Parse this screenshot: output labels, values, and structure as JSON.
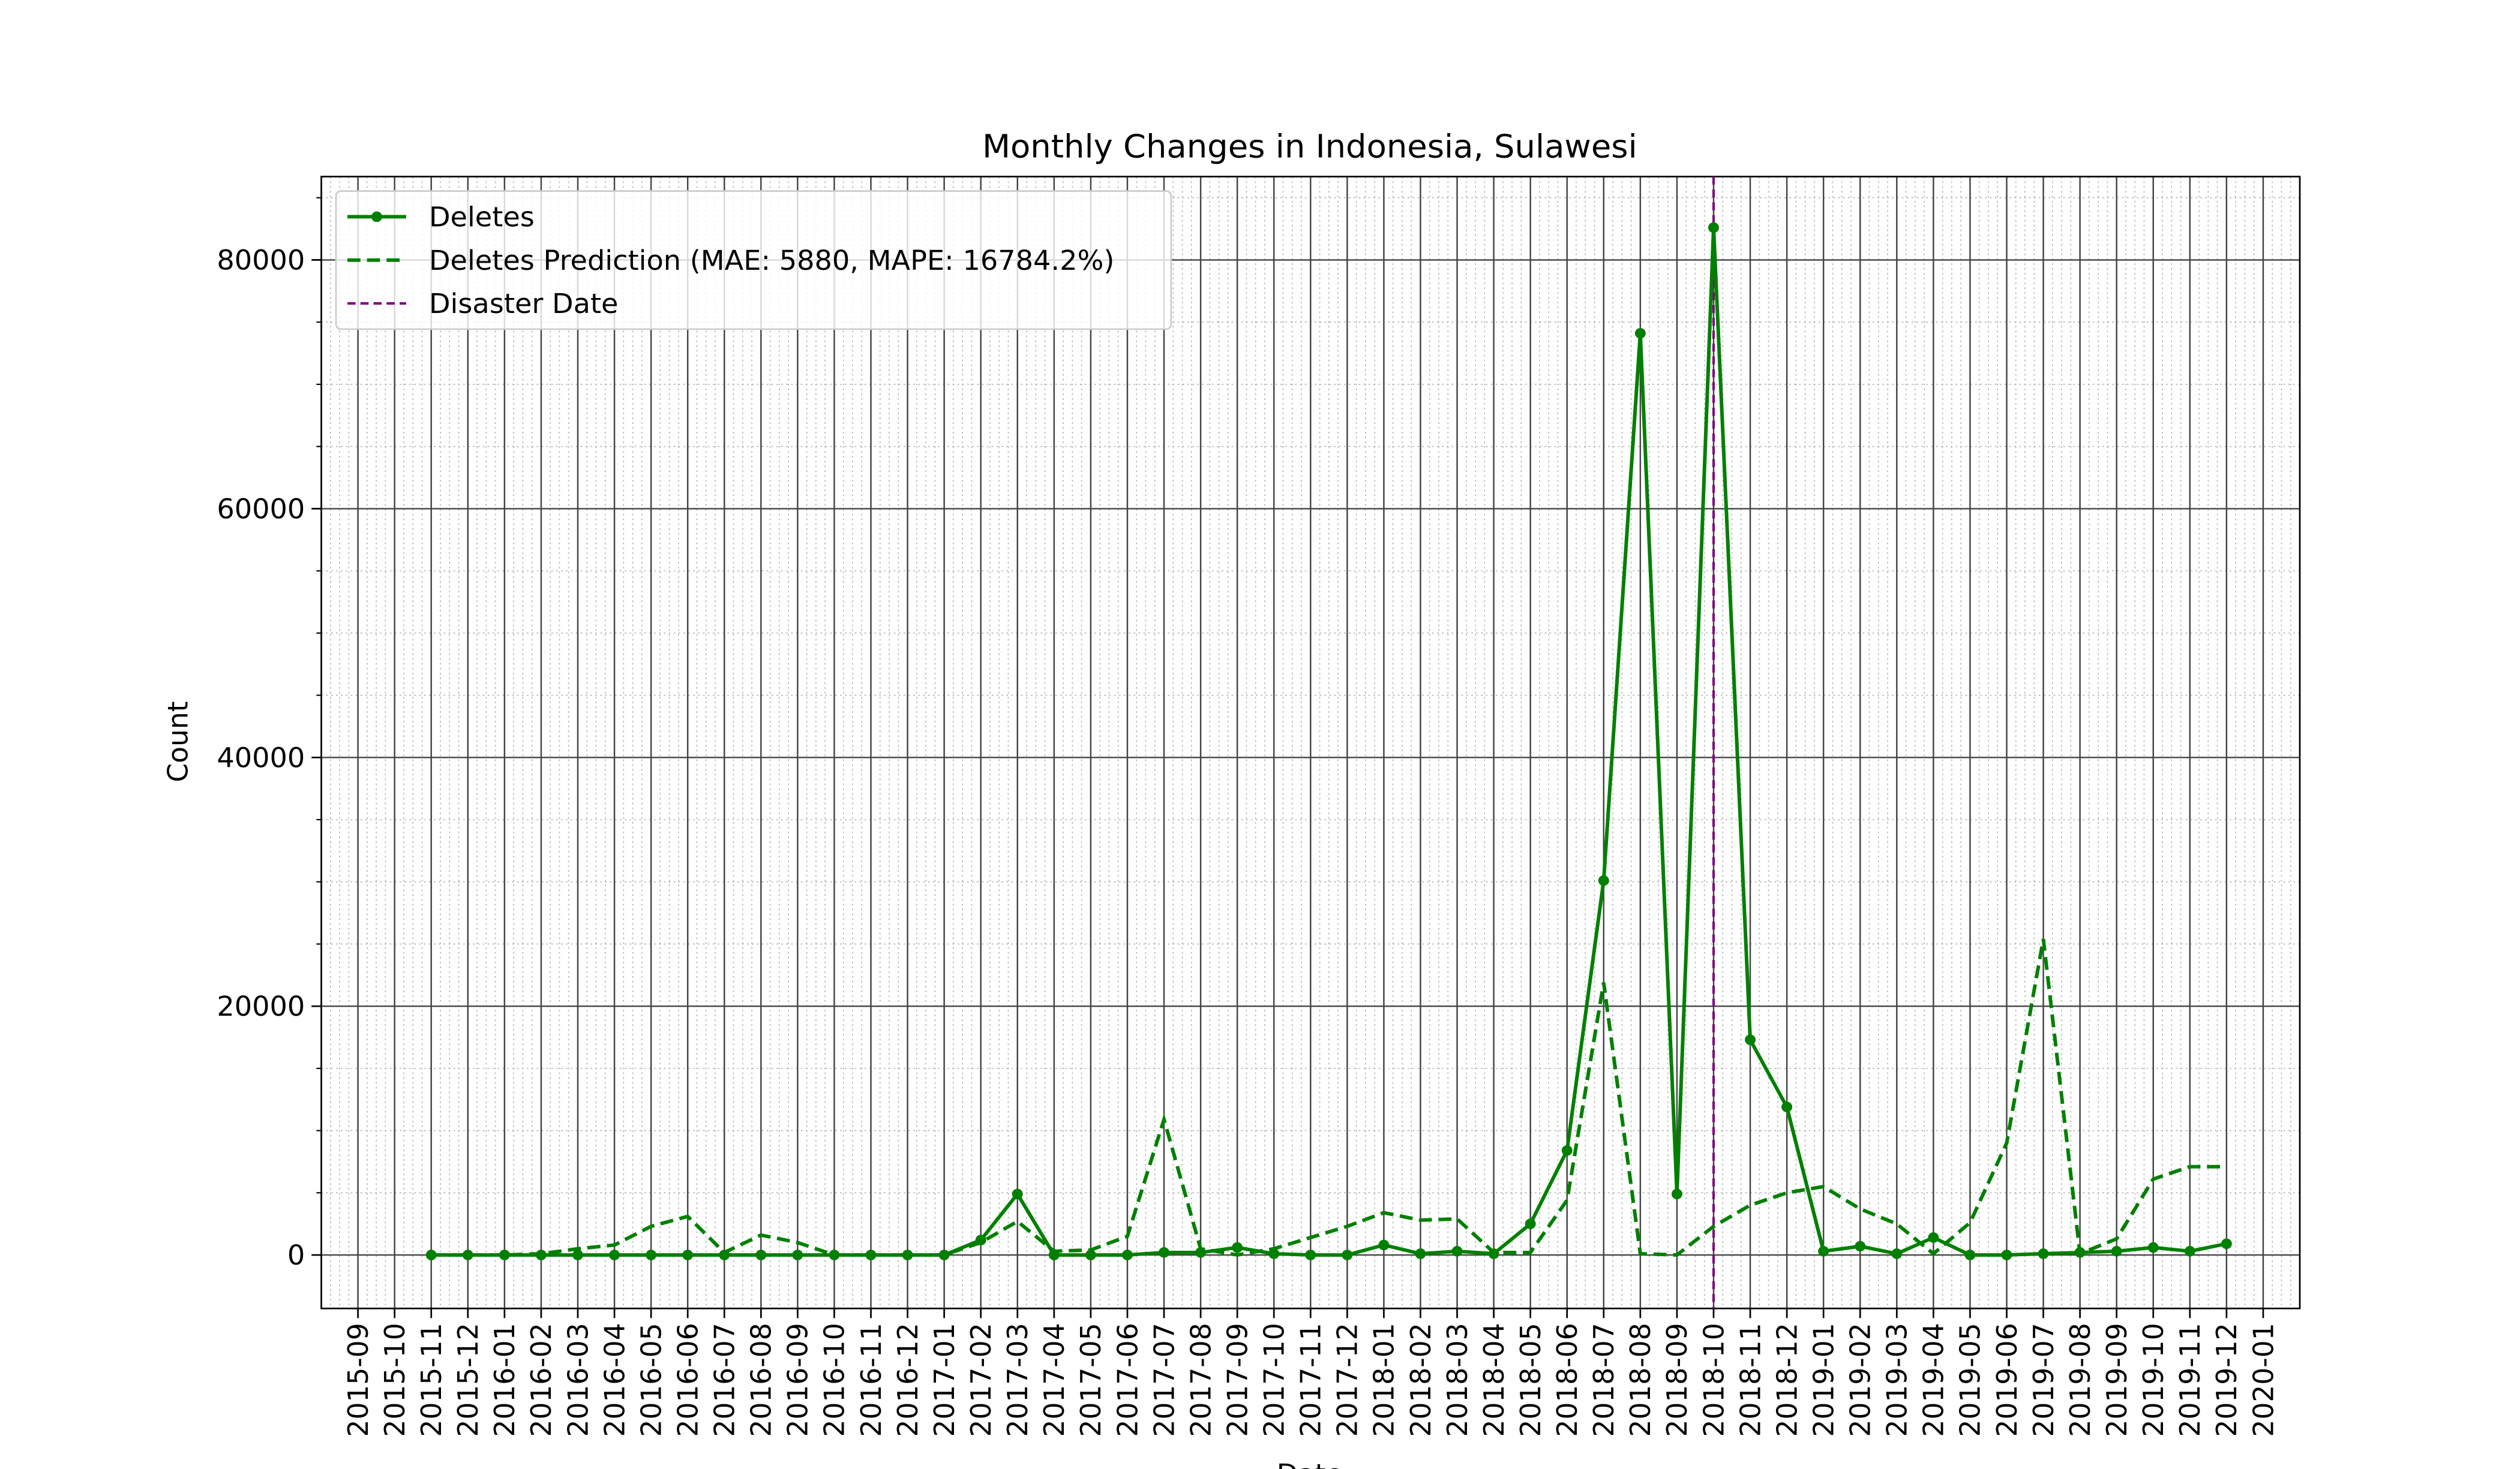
{
  "chart_data": {
    "type": "line",
    "title": "Monthly Changes in Indonesia, Sulawesi",
    "xlabel": "Date",
    "ylabel": "Count",
    "x": [
      "2015-11",
      "2015-12",
      "2016-01",
      "2016-02",
      "2016-03",
      "2016-04",
      "2016-05",
      "2016-06",
      "2016-07",
      "2016-08",
      "2016-09",
      "2016-10",
      "2016-11",
      "2016-12",
      "2017-01",
      "2017-02",
      "2017-03",
      "2017-04",
      "2017-05",
      "2017-06",
      "2017-07",
      "2017-08",
      "2017-09",
      "2017-10",
      "2017-11",
      "2017-12",
      "2018-01",
      "2018-02",
      "2018-03",
      "2018-04",
      "2018-05",
      "2018-06",
      "2018-07",
      "2018-08",
      "2018-09",
      "2018-10",
      "2018-11",
      "2018-12",
      "2019-01",
      "2019-02",
      "2019-03",
      "2019-04",
      "2019-05",
      "2019-06",
      "2019-07",
      "2019-08",
      "2019-09",
      "2019-10",
      "2019-11",
      "2019-12"
    ],
    "series": [
      {
        "name": "Deletes",
        "color": "#008000",
        "style": "solid",
        "markers": true,
        "values": [
          0,
          0,
          0,
          0,
          0,
          0,
          0,
          0,
          0,
          0,
          0,
          0,
          0,
          0,
          0,
          1200,
          4900,
          0,
          0,
          0,
          200,
          200,
          600,
          100,
          0,
          0,
          800,
          100,
          300,
          100,
          2500,
          8400,
          30100,
          74100,
          4900,
          82600,
          17300,
          11900,
          300,
          700,
          100,
          1400,
          0,
          0,
          100,
          200,
          300,
          600,
          300,
          900
        ]
      },
      {
        "name": "Deletes Prediction (MAE: 5880, MAPE: 16784.2%)",
        "color": "#008000",
        "style": "dashed",
        "markers": false,
        "values": [
          0,
          0,
          0,
          100,
          500,
          800,
          2300,
          3100,
          200,
          1600,
          1000,
          0,
          0,
          0,
          0,
          1000,
          2700,
          300,
          400,
          1500,
          10900,
          500,
          0,
          500,
          1400,
          2300,
          3400,
          2800,
          2900,
          200,
          200,
          4400,
          21900,
          100,
          0,
          2300,
          4000,
          5000,
          5500,
          3700,
          2500,
          100,
          2600,
          9000,
          25400,
          100,
          1300,
          6100,
          7100,
          7100
        ]
      }
    ],
    "disaster": {
      "name": "Disaster Date",
      "color": "#800080",
      "x": "2018-10"
    },
    "xlim": [
      "2015-08",
      "2020-02"
    ],
    "xticks": [
      "2015-09",
      "2015-10",
      "2015-11",
      "2015-12",
      "2016-01",
      "2016-02",
      "2016-03",
      "2016-04",
      "2016-05",
      "2016-06",
      "2016-07",
      "2016-08",
      "2016-09",
      "2016-10",
      "2016-11",
      "2016-12",
      "2017-01",
      "2017-02",
      "2017-03",
      "2017-04",
      "2017-05",
      "2017-06",
      "2017-07",
      "2017-08",
      "2017-09",
      "2017-10",
      "2017-11",
      "2017-12",
      "2018-01",
      "2018-02",
      "2018-03",
      "2018-04",
      "2018-05",
      "2018-06",
      "2018-07",
      "2018-08",
      "2018-09",
      "2018-10",
      "2018-11",
      "2018-12",
      "2019-01",
      "2019-02",
      "2019-03",
      "2019-04",
      "2019-05",
      "2019-06",
      "2019-07",
      "2019-08",
      "2019-09",
      "2019-10",
      "2019-11",
      "2019-12",
      "2020-01"
    ],
    "ylim": [
      -4300,
      86700
    ],
    "yticks": [
      0,
      20000,
      40000,
      60000,
      80000
    ],
    "grid": true,
    "minor_grid": true,
    "legend": "upper left"
  }
}
